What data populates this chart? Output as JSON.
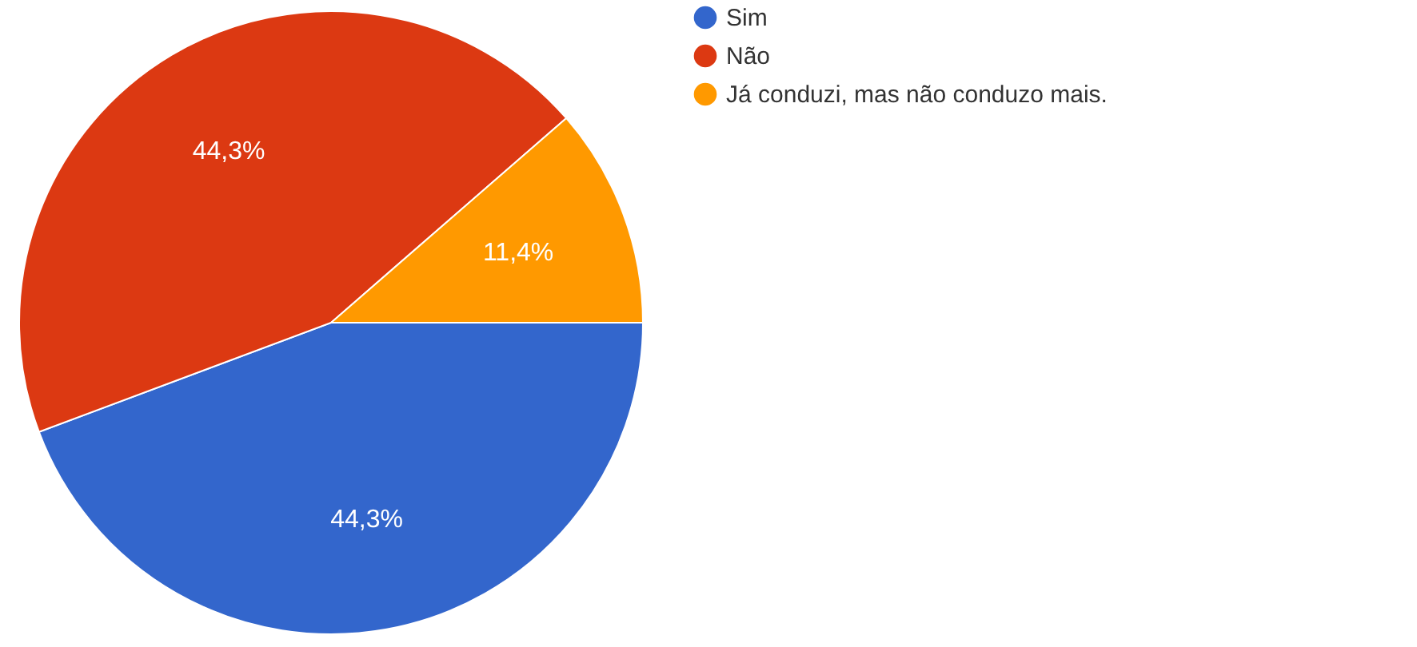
{
  "chart_data": {
    "type": "pie",
    "categories": [
      "Sim",
      "Não",
      "Já conduzi, mas não conduzo mais."
    ],
    "values": [
      44.3,
      44.3,
      11.4
    ],
    "colors": [
      "#3366cc",
      "#dc3912",
      "#ff9900"
    ],
    "value_labels": [
      "44,3%",
      "44,3%",
      "11,4%"
    ],
    "legend": "right"
  }
}
